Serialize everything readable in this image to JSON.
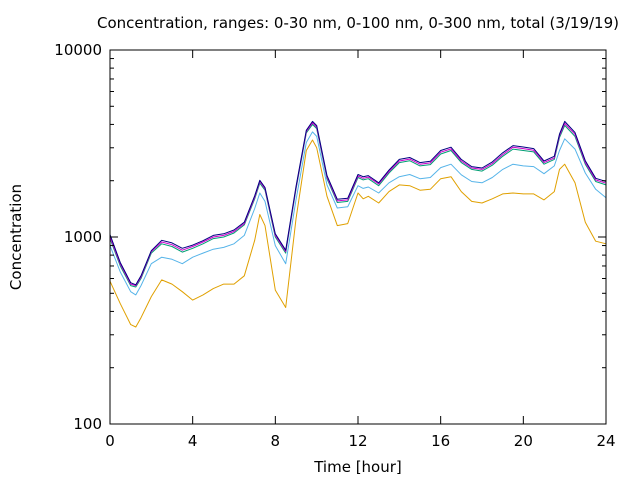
{
  "chart_data": {
    "type": "line",
    "title": "Concentration, ranges: 0-30 nm, 0-100 nm, 0-300 nm, total (3/19/19)",
    "xlabel": "Time [hour]",
    "ylabel": "Concentration",
    "xlim": [
      0,
      24
    ],
    "ylim": [
      100,
      10000
    ],
    "yscale": "log",
    "grid": false,
    "x_ticks": [
      0,
      4,
      8,
      12,
      16,
      20,
      24
    ],
    "x_tick_labels": [
      "0",
      "4",
      "8",
      "12",
      "16",
      "20",
      "24"
    ],
    "y_ticks": [
      100,
      1000,
      10000
    ],
    "y_tick_labels": [
      "100",
      "1000",
      "10000"
    ],
    "x": [
      0,
      0.5,
      1,
      1.25,
      1.5,
      2,
      2.5,
      3,
      3.5,
      4,
      4.5,
      5,
      5.5,
      6,
      6.5,
      7,
      7.25,
      7.5,
      8,
      8.5,
      9,
      9.5,
      9.8,
      10,
      10.5,
      11,
      11.5,
      12,
      12.25,
      12.5,
      13,
      13.5,
      14,
      14.5,
      15,
      15.5,
      16,
      16.5,
      17,
      17.5,
      18,
      18.5,
      19,
      19.5,
      20,
      20.5,
      21,
      21.5,
      21.75,
      22,
      22.5,
      23,
      23.5,
      24
    ],
    "series": [
      {
        "color": "#e0a000",
        "values": [
          580,
          440,
          340,
          330,
          370,
          480,
          590,
          560,
          510,
          460,
          490,
          530,
          560,
          560,
          620,
          960,
          1320,
          1150,
          520,
          420,
          1250,
          2900,
          3300,
          3000,
          1650,
          1150,
          1180,
          1720,
          1600,
          1650,
          1520,
          1750,
          1900,
          1880,
          1780,
          1800,
          2050,
          2100,
          1750,
          1550,
          1520,
          1600,
          1700,
          1720,
          1700,
          1700,
          1580,
          1750,
          2300,
          2450,
          1950,
          1200,
          950,
          920
        ]
      },
      {
        "color": "#56b4e9",
        "values": [
          900,
          650,
          510,
          490,
          550,
          720,
          780,
          760,
          720,
          780,
          820,
          860,
          880,
          920,
          1020,
          1420,
          1720,
          1550,
          900,
          720,
          1580,
          3200,
          3650,
          3450,
          1900,
          1430,
          1450,
          1880,
          1820,
          1850,
          1720,
          1950,
          2100,
          2160,
          2050,
          2080,
          2350,
          2450,
          2150,
          1980,
          1950,
          2080,
          2300,
          2450,
          2400,
          2380,
          2180,
          2400,
          2900,
          3350,
          2950,
          2200,
          1800,
          1620
        ]
      },
      {
        "color": "#009e73",
        "values": [
          980,
          700,
          550,
          540,
          600,
          820,
          920,
          890,
          830,
          870,
          920,
          980,
          1000,
          1050,
          1160,
          1600,
          1940,
          1780,
          1000,
          820,
          1800,
          3600,
          4000,
          3800,
          2050,
          1530,
          1550,
          2080,
          2020,
          2050,
          1880,
          2200,
          2500,
          2560,
          2400,
          2440,
          2780,
          2900,
          2500,
          2300,
          2250,
          2420,
          2700,
          2950,
          2900,
          2850,
          2450,
          2600,
          3400,
          3950,
          3450,
          2450,
          1980,
          1900
        ]
      },
      {
        "color": "#cc00cc",
        "values": [
          1000,
          715,
          560,
          550,
          610,
          835,
          940,
          910,
          850,
          890,
          940,
          1000,
          1020,
          1070,
          1180,
          1630,
          1980,
          1810,
          1020,
          835,
          1830,
          3660,
          4080,
          3870,
          2090,
          1560,
          1580,
          2120,
          2060,
          2090,
          1920,
          2240,
          2550,
          2610,
          2450,
          2490,
          2840,
          2960,
          2550,
          2340,
          2300,
          2470,
          2760,
          3020,
          2970,
          2910,
          2500,
          2650,
          3480,
          4050,
          3540,
          2500,
          2020,
          1940
        ]
      },
      {
        "color": "#000080",
        "values": [
          1030,
          730,
          570,
          555,
          620,
          845,
          960,
          930,
          870,
          905,
          955,
          1020,
          1040,
          1090,
          1200,
          1660,
          2010,
          1840,
          1040,
          850,
          1860,
          3720,
          4150,
          3940,
          2130,
          1590,
          1610,
          2160,
          2100,
          2130,
          1950,
          2280,
          2600,
          2660,
          2500,
          2540,
          2900,
          3020,
          2600,
          2380,
          2340,
          2520,
          2820,
          3080,
          3030,
          2970,
          2550,
          2700,
          3550,
          4150,
          3620,
          2560,
          2060,
          1980
        ]
      }
    ]
  }
}
